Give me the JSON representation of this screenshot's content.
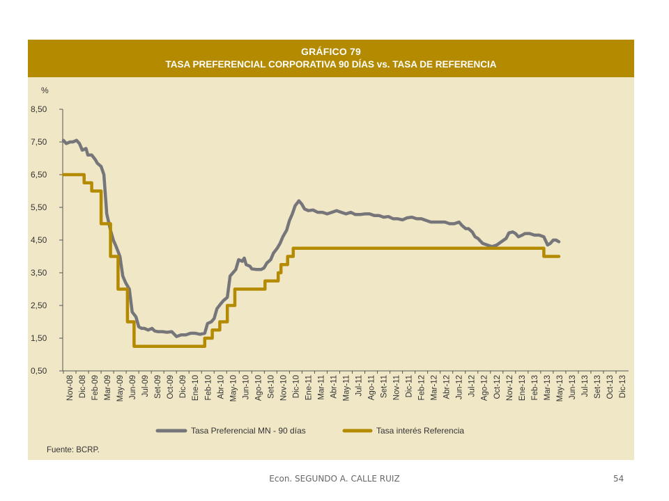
{
  "slide": {
    "footer": "Econ. SEGUNDO A. CALLE RUIZ",
    "page_number": "54"
  },
  "colors": {
    "header_bg": "#b38a00",
    "panel_bg": "#f0e7c7",
    "series_gray": "#76767a",
    "series_gold": "#b38a00"
  },
  "chart_data": {
    "type": "line",
    "title": "GRÁFICO 79",
    "subtitle": "TASA PREFERENCIAL CORPORATIVA 90 DÍAS vs. TASA DE REFERENCIA",
    "ylabel": "%",
    "xlabel": "",
    "ylim": [
      0.5,
      8.5
    ],
    "yticks": [
      "8,50",
      "7,50",
      "6,50",
      "5,50",
      "4,50",
      "3,50",
      "2,50",
      "1,50",
      "0,50"
    ],
    "ytick_values": [
      8.5,
      7.5,
      6.5,
      5.5,
      4.5,
      3.5,
      2.5,
      1.5,
      0.5
    ],
    "x_labels": [
      "Nov-08",
      "Dic-08",
      "Feb-09",
      "Mar-09",
      "May-09",
      "Jun-09",
      "Jul-09",
      "Set-09",
      "Oct-09",
      "Dic-09",
      "Ene-10",
      "Feb-10",
      "Abr-10",
      "May-10",
      "Jun-10",
      "Ago-10",
      "Set-10",
      "Nov-10",
      "Dic-10",
      "Ene-11",
      "Mar-11",
      "Abr-11",
      "May-11",
      "Jul-11",
      "Ago-11",
      "Set-11",
      "Nov-11",
      "Dic-11",
      "Feb-12",
      "Mar-12",
      "Abr-12",
      "Jun-12",
      "Jul-12",
      "Ago-12",
      "Oct-12",
      "Nov-12",
      "Ene-13",
      "Feb-13",
      "Mar-13",
      "May-13",
      "Jun-13",
      "Jul-13",
      "Set-13",
      "Oct-13",
      "Dic-13"
    ],
    "x_index_range": [
      0,
      60
    ],
    "grid": false,
    "legend_position": "bottom",
    "source": "Fuente: BCRP.",
    "series": [
      {
        "name": "Tasa Preferencial MN - 90 días",
        "color": "#76767a",
        "points": [
          [
            0.0,
            7.55
          ],
          [
            0.3,
            7.45
          ],
          [
            0.7,
            7.5
          ],
          [
            1.0,
            7.5
          ],
          [
            1.4,
            7.55
          ],
          [
            1.7,
            7.45
          ],
          [
            2.0,
            7.25
          ],
          [
            2.4,
            7.3
          ],
          [
            2.6,
            7.1
          ],
          [
            3.0,
            7.1
          ],
          [
            3.4,
            6.95
          ],
          [
            3.6,
            6.85
          ],
          [
            4.0,
            6.75
          ],
          [
            4.3,
            6.5
          ],
          [
            4.6,
            5.3
          ],
          [
            5.0,
            4.8
          ],
          [
            5.3,
            4.5
          ],
          [
            5.6,
            4.3
          ],
          [
            6.0,
            4.0
          ],
          [
            6.3,
            3.4
          ],
          [
            6.6,
            3.2
          ],
          [
            7.0,
            3.0
          ],
          [
            7.3,
            2.3
          ],
          [
            7.7,
            2.15
          ],
          [
            8.0,
            1.85
          ],
          [
            8.3,
            1.8
          ],
          [
            8.6,
            1.8
          ],
          [
            9.0,
            1.75
          ],
          [
            9.4,
            1.8
          ],
          [
            9.7,
            1.72
          ],
          [
            10.0,
            1.7
          ],
          [
            10.5,
            1.7
          ],
          [
            11.0,
            1.68
          ],
          [
            11.5,
            1.7
          ],
          [
            12.0,
            1.55
          ],
          [
            12.5,
            1.6
          ],
          [
            13.0,
            1.6
          ],
          [
            13.5,
            1.65
          ],
          [
            14.0,
            1.65
          ],
          [
            14.5,
            1.62
          ],
          [
            15.0,
            1.65
          ],
          [
            15.3,
            1.95
          ],
          [
            15.7,
            2.0
          ],
          [
            16.0,
            2.1
          ],
          [
            16.3,
            2.4
          ],
          [
            16.7,
            2.55
          ],
          [
            17.0,
            2.65
          ],
          [
            17.4,
            2.75
          ],
          [
            17.7,
            3.4
          ],
          [
            18.0,
            3.5
          ],
          [
            18.3,
            3.6
          ],
          [
            18.6,
            3.9
          ],
          [
            19.0,
            3.85
          ],
          [
            19.2,
            3.95
          ],
          [
            19.4,
            3.75
          ],
          [
            19.8,
            3.7
          ],
          [
            20.0,
            3.62
          ],
          [
            20.5,
            3.6
          ],
          [
            21.0,
            3.6
          ],
          [
            21.3,
            3.65
          ],
          [
            21.6,
            3.8
          ],
          [
            22.0,
            3.9
          ],
          [
            22.3,
            4.1
          ],
          [
            22.7,
            4.25
          ],
          [
            23.0,
            4.4
          ],
          [
            23.3,
            4.6
          ],
          [
            23.7,
            4.8
          ],
          [
            24.0,
            5.1
          ],
          [
            24.3,
            5.3
          ],
          [
            24.6,
            5.55
          ],
          [
            25.0,
            5.7
          ],
          [
            25.3,
            5.6
          ],
          [
            25.6,
            5.45
          ],
          [
            26.0,
            5.4
          ],
          [
            26.5,
            5.42
          ],
          [
            27.0,
            5.35
          ],
          [
            27.5,
            5.35
          ],
          [
            28.0,
            5.3
          ],
          [
            28.5,
            5.35
          ],
          [
            29.0,
            5.4
          ],
          [
            29.5,
            5.35
          ],
          [
            30.0,
            5.3
          ],
          [
            30.5,
            5.35
          ],
          [
            31.0,
            5.28
          ],
          [
            31.5,
            5.28
          ],
          [
            32.0,
            5.3
          ],
          [
            32.5,
            5.3
          ],
          [
            33.0,
            5.25
          ],
          [
            33.5,
            5.25
          ],
          [
            34.0,
            5.2
          ],
          [
            34.5,
            5.22
          ],
          [
            35.0,
            5.15
          ],
          [
            35.5,
            5.15
          ],
          [
            36.0,
            5.12
          ],
          [
            36.5,
            5.18
          ],
          [
            37.0,
            5.2
          ],
          [
            37.5,
            5.15
          ],
          [
            38.0,
            5.15
          ],
          [
            38.5,
            5.1
          ],
          [
            39.0,
            5.05
          ],
          [
            39.5,
            5.05
          ],
          [
            40.0,
            5.05
          ],
          [
            40.5,
            5.05
          ],
          [
            41.0,
            5.0
          ],
          [
            41.5,
            5.0
          ],
          [
            42.0,
            5.05
          ],
          [
            42.3,
            4.95
          ],
          [
            42.7,
            4.85
          ],
          [
            43.0,
            4.85
          ],
          [
            43.4,
            4.75
          ],
          [
            43.7,
            4.6
          ],
          [
            44.0,
            4.55
          ],
          [
            44.5,
            4.4
          ],
          [
            45.0,
            4.35
          ],
          [
            45.5,
            4.3
          ],
          [
            46.0,
            4.35
          ],
          [
            46.5,
            4.45
          ],
          [
            47.0,
            4.55
          ],
          [
            47.3,
            4.72
          ],
          [
            47.7,
            4.75
          ],
          [
            48.0,
            4.7
          ],
          [
            48.3,
            4.6
          ],
          [
            48.7,
            4.65
          ],
          [
            49.0,
            4.7
          ],
          [
            49.5,
            4.7
          ],
          [
            50.0,
            4.65
          ],
          [
            50.5,
            4.65
          ],
          [
            51.0,
            4.6
          ],
          [
            51.4,
            4.35
          ],
          [
            51.7,
            4.4
          ],
          [
            52.0,
            4.5
          ],
          [
            52.3,
            4.5
          ],
          [
            52.6,
            4.45
          ]
        ]
      },
      {
        "name": "Tasa interés Referencia",
        "color": "#b38a00",
        "points": [
          [
            0.0,
            6.5
          ],
          [
            2.2,
            6.5
          ],
          [
            2.2,
            6.25
          ],
          [
            3.0,
            6.25
          ],
          [
            3.0,
            6.0
          ],
          [
            4.0,
            6.0
          ],
          [
            4.0,
            5.0
          ],
          [
            5.0,
            5.0
          ],
          [
            5.0,
            4.0
          ],
          [
            5.8,
            4.0
          ],
          [
            5.8,
            3.0
          ],
          [
            6.8,
            3.0
          ],
          [
            6.8,
            2.0
          ],
          [
            7.5,
            2.0
          ],
          [
            7.5,
            1.25
          ],
          [
            15.0,
            1.25
          ],
          [
            15.0,
            1.5
          ],
          [
            15.8,
            1.5
          ],
          [
            15.8,
            1.75
          ],
          [
            16.6,
            1.75
          ],
          [
            16.6,
            2.0
          ],
          [
            17.4,
            2.0
          ],
          [
            17.4,
            2.5
          ],
          [
            18.2,
            2.5
          ],
          [
            18.2,
            3.0
          ],
          [
            21.4,
            3.0
          ],
          [
            21.4,
            3.25
          ],
          [
            22.8,
            3.25
          ],
          [
            22.8,
            3.5
          ],
          [
            23.1,
            3.5
          ],
          [
            23.1,
            3.75
          ],
          [
            23.8,
            3.75
          ],
          [
            23.8,
            4.0
          ],
          [
            24.4,
            4.0
          ],
          [
            24.4,
            4.25
          ],
          [
            51.0,
            4.25
          ],
          [
            51.0,
            4.0
          ],
          [
            52.6,
            4.0
          ]
        ]
      }
    ]
  }
}
